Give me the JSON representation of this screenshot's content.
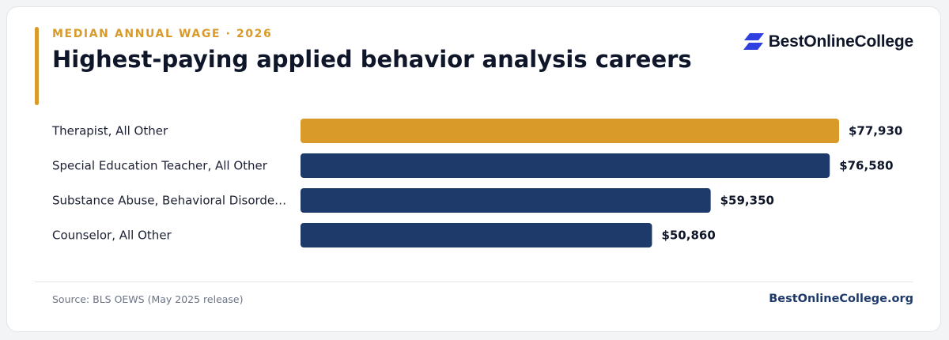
{
  "header": {
    "eyebrow": "MEDIAN ANNUAL WAGE · 2026",
    "title": "Highest-paying applied behavior analysis careers"
  },
  "brand": {
    "name": "BestOnlineCollege",
    "icon": "brand-logo-icon",
    "icon_color": "#2f3fe0"
  },
  "colors": {
    "highlight": "#d99a29",
    "bar": "#1e3a6b",
    "accent": "#d99a29"
  },
  "chart_data": {
    "type": "bar",
    "orientation": "horizontal",
    "categories": [
      "Therapist, All Other",
      "Special Education Teacher, All Other",
      "Substance Abuse, Behavioral Disorde…",
      "Counselor, All Other"
    ],
    "values": [
      77930,
      76580,
      59350,
      50860
    ],
    "value_labels": [
      "$77,930",
      "$76,580",
      "$59,350",
      "$50,860"
    ],
    "highlight_index": 0,
    "xlim": [
      0,
      77930
    ],
    "grid": false,
    "legend": "none"
  },
  "footer": {
    "source": "Source: BLS OEWS (May 2025 release)",
    "site": "BestOnlineCollege.org"
  }
}
